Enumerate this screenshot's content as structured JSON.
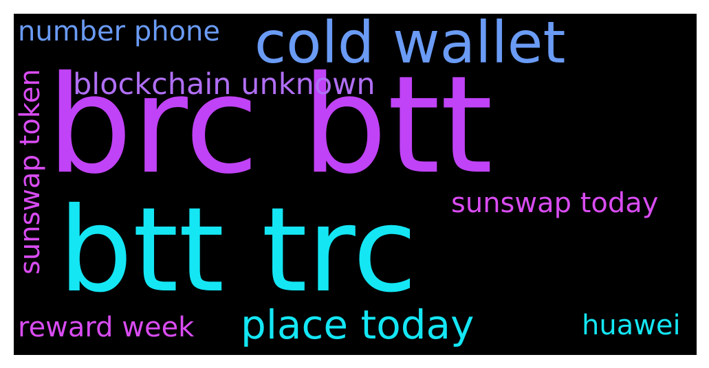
{
  "words": [
    {
      "text": "brc btt",
      "color": "#c043f7"
    },
    {
      "text": "btt trc",
      "color": "#14e6f4"
    },
    {
      "text": "cold wallet",
      "color": "#6a9bf5"
    },
    {
      "text": "number phone",
      "color": "#6a9bf5"
    },
    {
      "text": "blockchain unknown",
      "color": "#b16ff6"
    },
    {
      "text": "sunswap token",
      "color": "#d94cf2"
    },
    {
      "text": "sunswap today",
      "color": "#d94cf2"
    },
    {
      "text": "place today",
      "color": "#14e6f4"
    },
    {
      "text": "reward week",
      "color": "#d94cf2"
    },
    {
      "text": "huawei",
      "color": "#14e6f4"
    }
  ]
}
